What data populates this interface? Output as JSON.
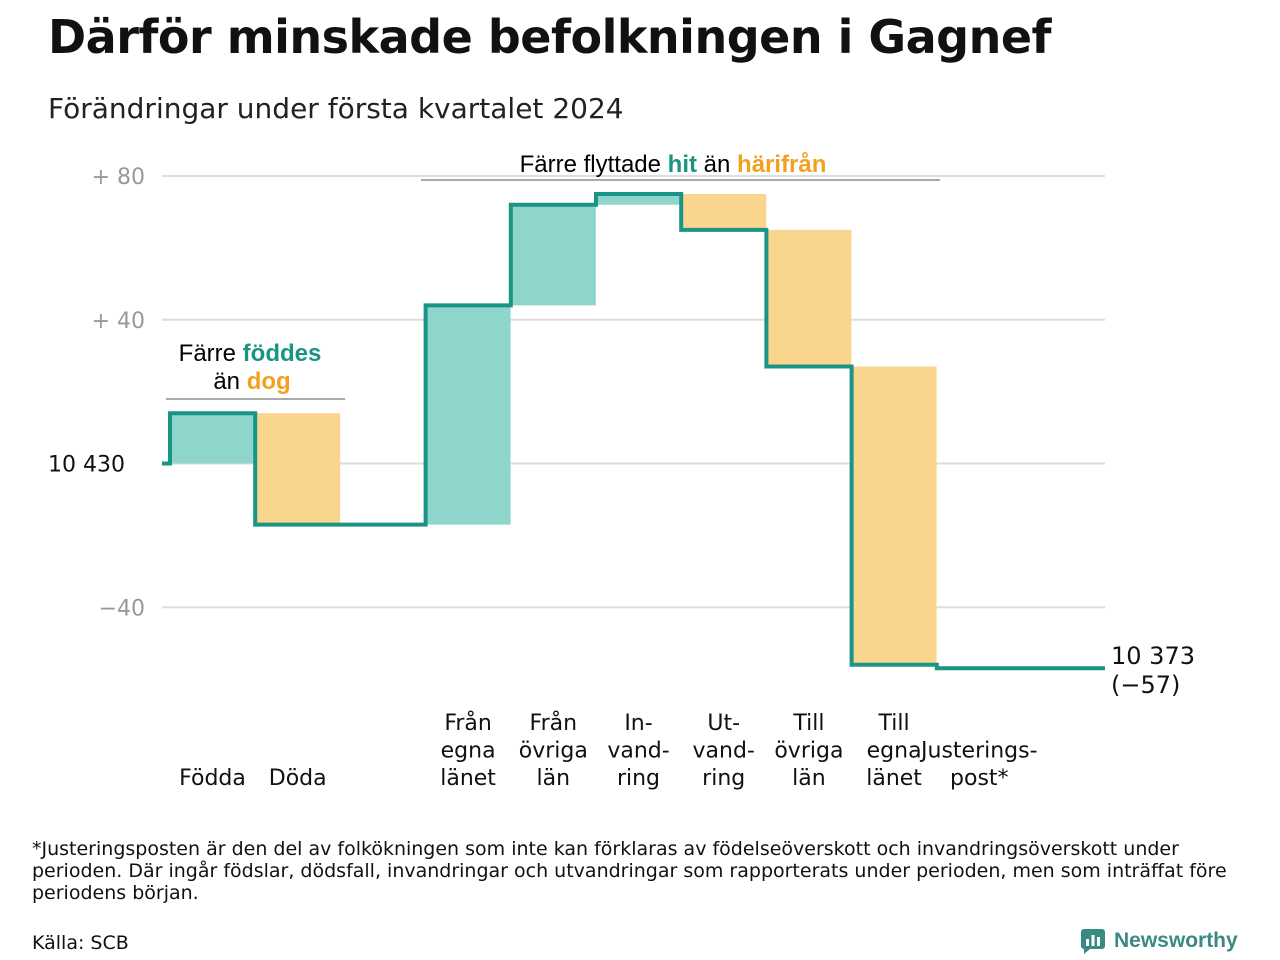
{
  "title": "Därför minskade befolkningen i Gagnef",
  "subtitle": "Förändringar under första kvartalet 2024",
  "colors": {
    "increase": "#8ed5cc",
    "decrease": "#fad58e",
    "line": "#1a9485",
    "teal_text": "#1a9485",
    "orange_text": "#f3a01f",
    "grid": "#dddddd",
    "tick": "#999999"
  },
  "annotations": {
    "births_deaths": {
      "line1_a": "Färre ",
      "line1_b": "föddes",
      "line2_a": "än ",
      "line2_b": "dog"
    },
    "migration": {
      "part1": "Färre flyttade ",
      "part2": "hit",
      "part3": " än ",
      "part4": "härifrån"
    }
  },
  "end_label": {
    "line1": "10 373",
    "line2": "(−57)"
  },
  "footnote": "*Justeringsposten är den del av folkökningen som inte kan förklaras av födelseöverskott och invandringsöverskott under perioden. Där ingår födslar, dödsfall, invandringar och utvandringar som rapporterats under perioden, men som inträffat före periodens början.",
  "source": "Källa: SCB",
  "brand": {
    "name": "Newsworthy",
    "icon": "newsworthy-logo-icon"
  },
  "chart_data": {
    "type": "waterfall",
    "start_value": 10430,
    "ylim": [
      -58,
      82
    ],
    "y_ticks": [
      {
        "value": 80,
        "label": "+  80"
      },
      {
        "value": 40,
        "label": "+  40"
      },
      {
        "value": 0,
        "label": "10  430"
      },
      {
        "value": -40,
        "label": "−40"
      }
    ],
    "categories": [
      {
        "label": [
          "Födda"
        ],
        "delta": 14
      },
      {
        "label": [
          "Döda"
        ],
        "delta": -31
      },
      {
        "label": [
          ""
        ],
        "delta": 0
      },
      {
        "label": [
          "Från",
          "egna",
          "länet"
        ],
        "delta": 61
      },
      {
        "label": [
          "Från",
          "övriga",
          "län"
        ],
        "delta": 28
      },
      {
        "label": [
          "In-",
          "vand-",
          "ring"
        ],
        "delta": 3
      },
      {
        "label": [
          "Ut-",
          "vand-",
          "ring"
        ],
        "delta": -10
      },
      {
        "label": [
          "Till",
          "övriga",
          "län"
        ],
        "delta": -38
      },
      {
        "label": [
          "Till",
          "egna",
          "länet"
        ],
        "delta": -83
      },
      {
        "label": [
          "Justerings-",
          "post*"
        ],
        "delta": -1
      }
    ],
    "end_value": 10373,
    "end_change": -57,
    "grid": true
  }
}
